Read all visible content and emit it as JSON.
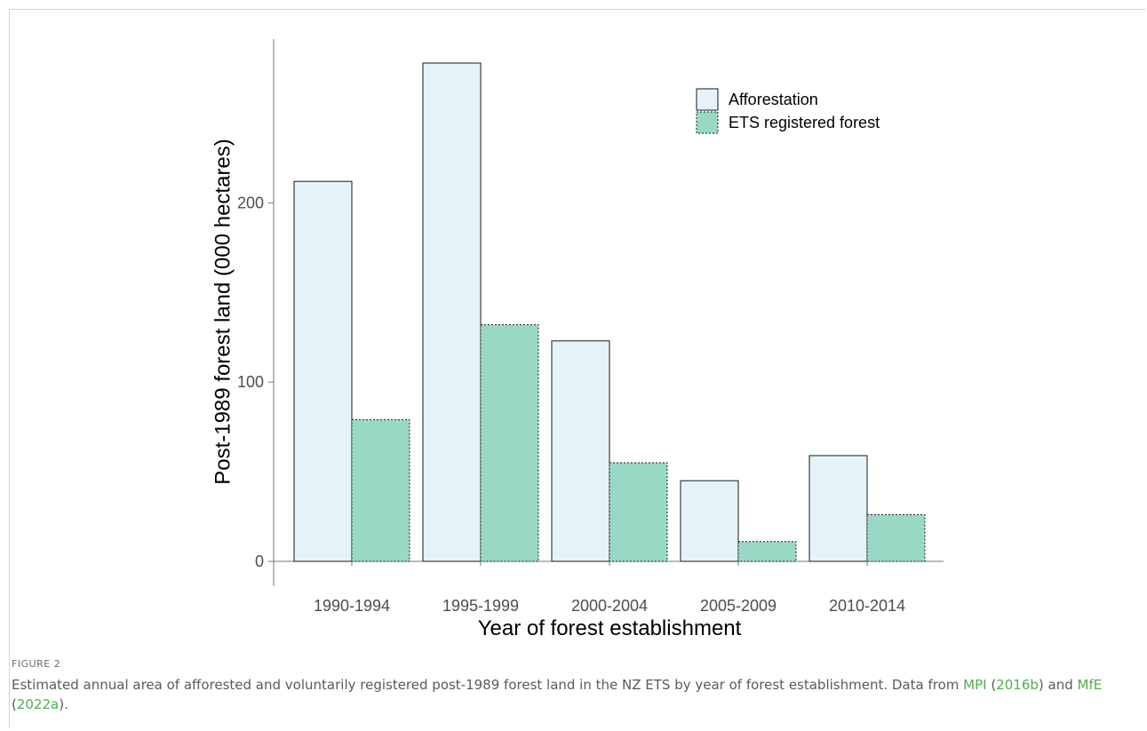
{
  "figure": {
    "label": "FIGURE 2",
    "caption": {
      "text1": "Estimated annual area of afforested and voluntarily registered post-1989 forest land in the NZ ETS by year of forest establishment. Data from ",
      "ref1_author": "MPI",
      "paren_open1": " (",
      "ref1_year": "2016b",
      "paren_mid": ") and ",
      "ref2_author": "MfE",
      "paren_open2": " (",
      "ref2_year": "2022a",
      "text_end": ")."
    }
  },
  "colors": {
    "afforestation_fill": "#e4f3f8",
    "ets_fill": "#9ad8c6",
    "bar_stroke": "#1a1a1a",
    "axis": "#777777",
    "tick_text": "#4d4d4d",
    "link": "#4daf4a"
  },
  "chart_data": {
    "type": "bar",
    "categories": [
      "1990-1994",
      "1995-1999",
      "2000-2004",
      "2005-2009",
      "2010-2014"
    ],
    "series": [
      {
        "name": "Afforestation",
        "values": [
          212,
          278,
          123,
          45,
          59
        ]
      },
      {
        "name": "ETS registered forest",
        "values": [
          79,
          132,
          55,
          11,
          26
        ]
      }
    ],
    "xlabel": "Year of forest establishment",
    "ylabel": "Post-1989 forest land (000 hectares)",
    "yticks": [
      0,
      100,
      200
    ],
    "ylim": [
      0,
      278
    ],
    "legend_position": "top-right",
    "grid": false
  }
}
